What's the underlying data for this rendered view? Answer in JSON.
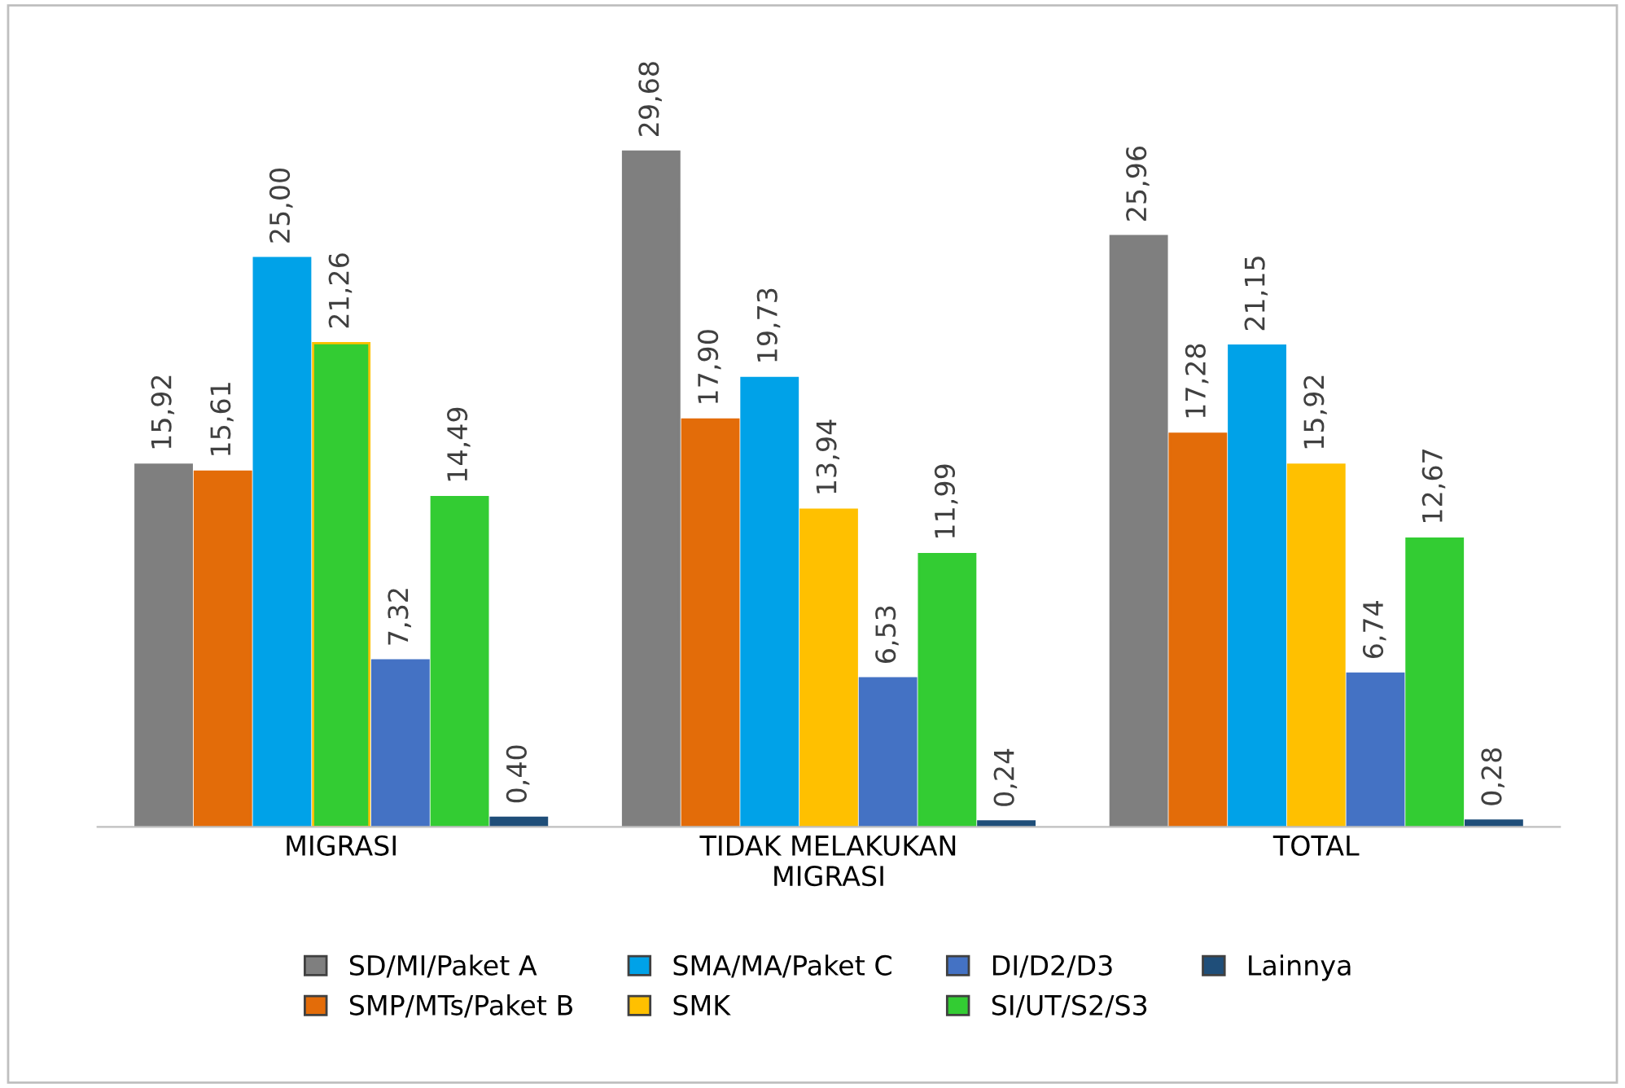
{
  "chart_data": {
    "type": "bar",
    "categories": [
      "MIGRASI",
      "TIDAK MELAKUKAN\nMIGRASI",
      "TOTAL"
    ],
    "series": [
      {
        "name": "SD/MI/Paket A",
        "color": "#7f7f7f",
        "values": [
          15.92,
          29.68,
          25.96
        ],
        "value_labels": [
          "15,92",
          "29,68",
          "25,96"
        ]
      },
      {
        "name": "SMP/MTs/Paket B",
        "color": "#e36c09",
        "values": [
          15.61,
          17.9,
          17.28
        ],
        "value_labels": [
          "15,61",
          "17,90",
          "17,28"
        ]
      },
      {
        "name": "SMA/MA/Paket C",
        "color": "#00a2e8",
        "values": [
          25.0,
          19.73,
          21.15
        ],
        "value_labels": [
          "25,00",
          "19,73",
          "21,15"
        ]
      },
      {
        "name": "SMK",
        "color": "#ffc000",
        "colors": [
          "#33cc33",
          "#ffc000",
          "#ffc000"
        ],
        "values": [
          21.26,
          13.94,
          15.92
        ],
        "value_labels": [
          "21,26",
          "13,94",
          "15,92"
        ]
      },
      {
        "name": "DI/D2/D3",
        "color": "#4472c4",
        "values": [
          7.32,
          6.53,
          6.74
        ],
        "value_labels": [
          "7,32",
          "6,53",
          "6,74"
        ]
      },
      {
        "name": "SI/UT/S2/S3",
        "color": "#33cc33",
        "values": [
          14.49,
          11.99,
          12.67
        ],
        "value_labels": [
          "14,49",
          "11,99",
          "12,67"
        ]
      },
      {
        "name": "Lainnya",
        "color": "#1f4e79",
        "values": [
          0.4,
          0.24,
          0.28
        ],
        "value_labels": [
          "0,40",
          "0,24",
          "0,28"
        ]
      }
    ],
    "legend": "bottom",
    "grid": false
  }
}
